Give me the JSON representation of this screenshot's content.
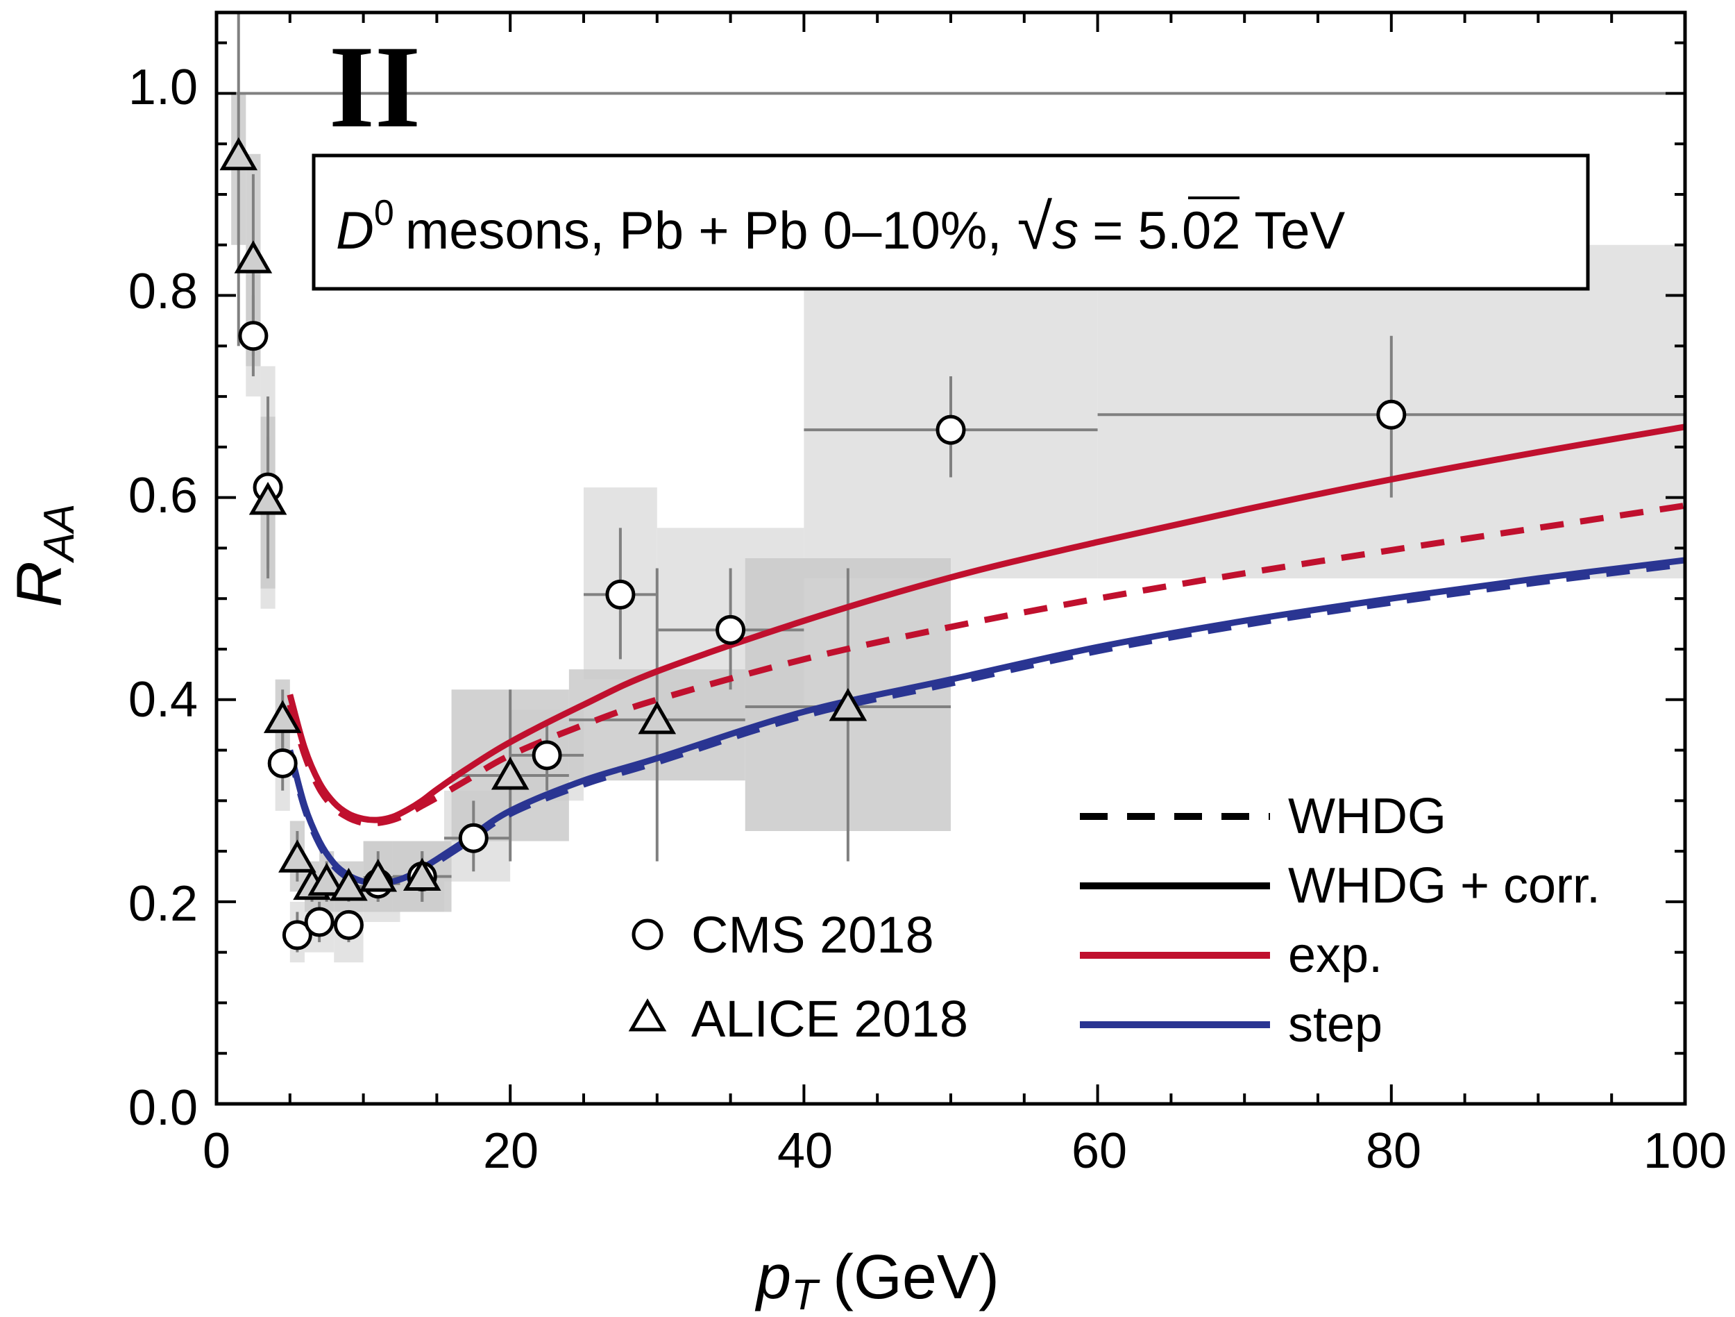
{
  "chart_data": {
    "type": "scatter",
    "panel_label": "II",
    "title": "D^0 mesons, Pb + Pb 0–10%, √s = 5.02 TeV",
    "title_parts": {
      "particle": "D",
      "particle_sup": "0",
      "rest": "mesons, Pb + Pb 0–10%,",
      "sqrt_sym": "√",
      "sqrt_arg": "s",
      "energy": "= 5.02 TeV"
    },
    "xlabel": {
      "main": "p",
      "sub": "T",
      "unit": "(GeV)"
    },
    "ylabel": {
      "main": "R",
      "sub": "AA"
    },
    "xlim": [
      0,
      100
    ],
    "ylim": [
      0,
      1.08
    ],
    "xticks": [
      0,
      20,
      40,
      60,
      80,
      100
    ],
    "xtick_labels": [
      "0",
      "20",
      "40",
      "60",
      "80",
      "100"
    ],
    "yticks": [
      0.0,
      0.2,
      0.4,
      0.6,
      0.8,
      1.0
    ],
    "ytick_labels": [
      "0.0",
      "0.2",
      "0.4",
      "0.6",
      "0.8",
      "1.0"
    ],
    "reference_line_y": 1.0,
    "colors": {
      "exp": "#c0102e",
      "step": "#2a3592",
      "stat": "#808080",
      "sys_cms": "#e2e2e2",
      "sys_alice": "#cacaca",
      "frame": "#000000"
    },
    "series": [
      {
        "name": "CMS 2018",
        "marker": "circle",
        "points": [
          {
            "x": 2.5,
            "y": 0.76,
            "xlo": 2.0,
            "xhi": 3.0,
            "ylo": 0.72,
            "yhi": 0.8,
            "sys_lo": 0.7,
            "sys_hi": 0.82
          },
          {
            "x": 3.5,
            "y": 0.61,
            "xlo": 3.0,
            "xhi": 4.0,
            "ylo": 0.52,
            "yhi": 0.7,
            "sys_lo": 0.49,
            "sys_hi": 0.73
          },
          {
            "x": 4.5,
            "y": 0.337,
            "xlo": 4.0,
            "xhi": 5.0,
            "ylo": 0.31,
            "yhi": 0.37,
            "sys_lo": 0.29,
            "sys_hi": 0.39
          },
          {
            "x": 5.5,
            "y": 0.167,
            "xlo": 5.0,
            "xhi": 6.0,
            "ylo": 0.15,
            "yhi": 0.19,
            "sys_lo": 0.14,
            "sys_hi": 0.2
          },
          {
            "x": 7.0,
            "y": 0.18,
            "xlo": 6.0,
            "xhi": 8.0,
            "ylo": 0.16,
            "yhi": 0.2,
            "sys_lo": 0.15,
            "sys_hi": 0.21
          },
          {
            "x": 9.0,
            "y": 0.177,
            "xlo": 8.0,
            "xhi": 10.0,
            "ylo": 0.16,
            "yhi": 0.19,
            "sys_lo": 0.14,
            "sys_hi": 0.21
          },
          {
            "x": 11.0,
            "y": 0.218,
            "xlo": 10.0,
            "xhi": 12.5,
            "ylo": 0.2,
            "yhi": 0.24,
            "sys_lo": 0.18,
            "sys_hi": 0.26
          },
          {
            "x": 14.0,
            "y": 0.225,
            "xlo": 12.5,
            "xhi": 15.5,
            "ylo": 0.2,
            "yhi": 0.25,
            "sys_lo": 0.19,
            "sys_hi": 0.26
          },
          {
            "x": 17.5,
            "y": 0.263,
            "xlo": 15.5,
            "xhi": 20.0,
            "ylo": 0.23,
            "yhi": 0.3,
            "sys_lo": 0.22,
            "sys_hi": 0.31
          },
          {
            "x": 22.5,
            "y": 0.345,
            "xlo": 20.0,
            "xhi": 25.0,
            "ylo": 0.31,
            "yhi": 0.38,
            "sys_lo": 0.3,
            "sys_hi": 0.39
          },
          {
            "x": 27.5,
            "y": 0.504,
            "xlo": 25.0,
            "xhi": 30.0,
            "ylo": 0.44,
            "yhi": 0.57,
            "sys_lo": 0.42,
            "sys_hi": 0.61
          },
          {
            "x": 35.0,
            "y": 0.469,
            "xlo": 30.0,
            "xhi": 40.0,
            "ylo": 0.41,
            "yhi": 0.53,
            "sys_lo": 0.38,
            "sys_hi": 0.57
          },
          {
            "x": 50.0,
            "y": 0.667,
            "xlo": 40.0,
            "xhi": 60.0,
            "ylo": 0.62,
            "yhi": 0.72,
            "sys_lo": 0.52,
            "sys_hi": 0.85
          },
          {
            "x": 80.0,
            "y": 0.682,
            "xlo": 60.0,
            "xhi": 100.0,
            "ylo": 0.6,
            "yhi": 0.76,
            "sys_lo": 0.52,
            "sys_hi": 0.85
          }
        ]
      },
      {
        "name": "ALICE 2018",
        "marker": "triangle",
        "points": [
          {
            "x": 1.5,
            "y": 0.938,
            "xlo": 1.0,
            "xhi": 2.0,
            "ylo": 0.75,
            "yhi": 1.08,
            "sys_lo": 0.85,
            "sys_hi": 1.0
          },
          {
            "x": 2.5,
            "y": 0.836,
            "xlo": 2.0,
            "xhi": 3.0,
            "ylo": 0.74,
            "yhi": 0.92,
            "sys_lo": 0.73,
            "sys_hi": 0.94
          },
          {
            "x": 3.5,
            "y": 0.597,
            "xlo": 3.0,
            "xhi": 4.0,
            "ylo": 0.53,
            "yhi": 0.66,
            "sys_lo": 0.51,
            "sys_hi": 0.68
          },
          {
            "x": 4.5,
            "y": 0.381,
            "xlo": 4.0,
            "xhi": 5.0,
            "ylo": 0.35,
            "yhi": 0.41,
            "sys_lo": 0.34,
            "sys_hi": 0.42
          },
          {
            "x": 5.5,
            "y": 0.243,
            "xlo": 5.0,
            "xhi": 6.0,
            "ylo": 0.22,
            "yhi": 0.27,
            "sys_lo": 0.21,
            "sys_hi": 0.28
          },
          {
            "x": 6.5,
            "y": 0.216,
            "xlo": 6.0,
            "xhi": 7.0,
            "ylo": 0.2,
            "yhi": 0.23,
            "sys_lo": 0.19,
            "sys_hi": 0.24
          },
          {
            "x": 7.5,
            "y": 0.22,
            "xlo": 7.0,
            "xhi": 8.0,
            "ylo": 0.2,
            "yhi": 0.24,
            "sys_lo": 0.19,
            "sys_hi": 0.25
          },
          {
            "x": 9.0,
            "y": 0.215,
            "xlo": 8.0,
            "xhi": 10.0,
            "ylo": 0.2,
            "yhi": 0.23,
            "sys_lo": 0.19,
            "sys_hi": 0.24
          },
          {
            "x": 11.0,
            "y": 0.224,
            "xlo": 10.0,
            "xhi": 12.0,
            "ylo": 0.2,
            "yhi": 0.25,
            "sys_lo": 0.19,
            "sys_hi": 0.26
          },
          {
            "x": 14.0,
            "y": 0.225,
            "xlo": 12.0,
            "xhi": 16.0,
            "ylo": 0.2,
            "yhi": 0.25,
            "sys_lo": 0.19,
            "sys_hi": 0.26
          },
          {
            "x": 20.0,
            "y": 0.325,
            "xlo": 16.0,
            "xhi": 24.0,
            "ylo": 0.24,
            "yhi": 0.41,
            "sys_lo": 0.26,
            "sys_hi": 0.41
          },
          {
            "x": 30.0,
            "y": 0.38,
            "xlo": 24.0,
            "xhi": 36.0,
            "ylo": 0.24,
            "yhi": 0.53,
            "sys_lo": 0.32,
            "sys_hi": 0.43
          },
          {
            "x": 43.0,
            "y": 0.393,
            "xlo": 36.0,
            "xhi": 50.0,
            "ylo": 0.24,
            "yhi": 0.53,
            "sys_lo": 0.27,
            "sys_hi": 0.54
          }
        ]
      }
    ],
    "curves": [
      {
        "name": "exp. WHDG + corr.",
        "color": "#c0102e",
        "dash": false,
        "x": [
          5,
          6,
          7,
          8,
          9,
          10,
          11,
          12,
          13,
          14,
          15,
          17,
          20,
          25,
          30,
          40,
          50,
          60,
          70,
          80,
          90,
          100
        ],
        "y": [
          0.405,
          0.352,
          0.318,
          0.298,
          0.287,
          0.282,
          0.281,
          0.284,
          0.291,
          0.3,
          0.311,
          0.331,
          0.358,
          0.395,
          0.428,
          0.478,
          0.521,
          0.556,
          0.588,
          0.618,
          0.645,
          0.67
        ]
      },
      {
        "name": "exp. WHDG",
        "color": "#c0102e",
        "dash": true,
        "x": [
          5,
          6,
          7,
          8,
          9,
          10,
          11,
          12,
          13,
          14,
          15,
          17,
          20,
          25,
          30,
          40,
          50,
          60,
          70,
          80,
          90,
          100
        ],
        "y": [
          0.395,
          0.345,
          0.312,
          0.293,
          0.283,
          0.278,
          0.278,
          0.281,
          0.287,
          0.295,
          0.303,
          0.32,
          0.345,
          0.375,
          0.4,
          0.44,
          0.472,
          0.5,
          0.525,
          0.548,
          0.57,
          0.592
        ]
      },
      {
        "name": "step WHDG + corr.",
        "color": "#2a3592",
        "dash": false,
        "x": [
          5,
          6,
          7,
          8,
          9,
          10,
          11,
          12,
          13,
          14,
          15,
          17,
          20,
          25,
          30,
          40,
          50,
          60,
          70,
          80,
          90,
          100
        ],
        "y": [
          0.35,
          0.295,
          0.26,
          0.238,
          0.226,
          0.22,
          0.218,
          0.22,
          0.225,
          0.233,
          0.242,
          0.261,
          0.29,
          0.32,
          0.342,
          0.388,
          0.42,
          0.452,
          0.478,
          0.5,
          0.52,
          0.538
        ]
      },
      {
        "name": "step WHDG",
        "color": "#2a3592",
        "dash": true,
        "x": [
          5,
          6,
          7,
          8,
          9,
          10,
          11,
          12,
          13,
          14,
          15,
          17,
          20,
          25,
          30,
          40,
          50,
          60,
          70,
          80,
          90,
          100
        ],
        "y": [
          0.346,
          0.292,
          0.257,
          0.235,
          0.223,
          0.217,
          0.215,
          0.217,
          0.222,
          0.23,
          0.239,
          0.258,
          0.287,
          0.316,
          0.338,
          0.384,
          0.416,
          0.448,
          0.474,
          0.496,
          0.516,
          0.534
        ]
      }
    ],
    "legend_markers": {
      "cms": "CMS 2018",
      "alice": "ALICE 2018"
    },
    "legend_lines": {
      "whdg": "WHDG",
      "whdg_corr": "WHDG + corr.",
      "exp": "exp.",
      "step": "step"
    }
  }
}
